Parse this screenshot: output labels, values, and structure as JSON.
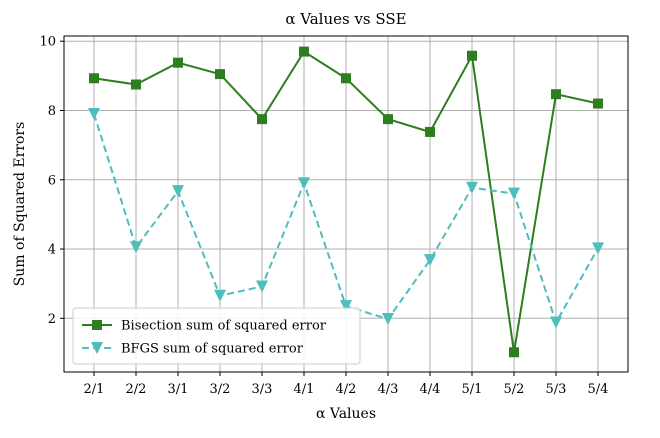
{
  "chart_data": {
    "type": "line",
    "title": "α Values vs SSE",
    "xlabel": "α Values",
    "ylabel": "Sum of Squared Errors",
    "categories": [
      "2/1",
      "2/2",
      "3/1",
      "3/2",
      "3/3",
      "4/1",
      "4/2",
      "4/3",
      "4/4",
      "5/1",
      "5/2",
      "5/3",
      "5/4"
    ],
    "ylim": [
      0.45,
      10.15
    ],
    "yticks": [
      "2",
      "4",
      "6",
      "8",
      "10"
    ],
    "grid": true,
    "legend_position": "lower-left",
    "series": [
      {
        "name": "Bisection sum of squared error",
        "color": "#2e7d1e",
        "linestyle": "solid",
        "marker": "square",
        "values": [
          8.93,
          8.75,
          9.38,
          9.05,
          7.75,
          9.7,
          8.93,
          7.75,
          7.38,
          9.58,
          1.02,
          8.47,
          8.2
        ]
      },
      {
        "name": "BFGS sum of squared error",
        "color": "#4dbdbd",
        "linestyle": "dashed",
        "marker": "triangle-down",
        "values": [
          7.9,
          4.05,
          5.67,
          2.65,
          2.92,
          5.9,
          2.35,
          1.98,
          3.68,
          5.77,
          5.6,
          1.88,
          4.02
        ]
      }
    ]
  }
}
